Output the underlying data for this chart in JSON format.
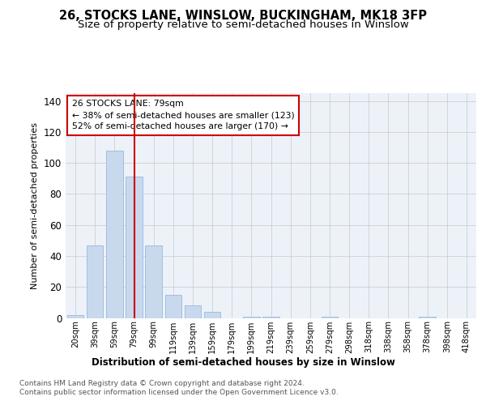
{
  "title": "26, STOCKS LANE, WINSLOW, BUCKINGHAM, MK18 3FP",
  "subtitle": "Size of property relative to semi-detached houses in Winslow",
  "xlabel": "Distribution of semi-detached houses by size in Winslow",
  "ylabel": "Number of semi-detached properties",
  "footnote1": "Contains HM Land Registry data © Crown copyright and database right 2024.",
  "footnote2": "Contains public sector information licensed under the Open Government Licence v3.0.",
  "bar_labels": [
    "20sqm",
    "39sqm",
    "59sqm",
    "79sqm",
    "99sqm",
    "119sqm",
    "139sqm",
    "159sqm",
    "179sqm",
    "199sqm",
    "219sqm",
    "239sqm",
    "259sqm",
    "279sqm",
    "298sqm",
    "318sqm",
    "338sqm",
    "358sqm",
    "378sqm",
    "398sqm",
    "418sqm"
  ],
  "bar_values": [
    2,
    47,
    108,
    91,
    47,
    15,
    8,
    4,
    0,
    1,
    1,
    0,
    0,
    1,
    0,
    0,
    0,
    0,
    1,
    0,
    0
  ],
  "bar_color": "#c8d9ee",
  "bar_edge_color": "#9ab8d8",
  "vline_color": "#cc0000",
  "annotation_title": "26 STOCKS LANE: 79sqm",
  "annotation_line1": "← 38% of semi-detached houses are smaller (123)",
  "annotation_line2": "52% of semi-detached houses are larger (170) →",
  "annotation_box_color": "#ffffff",
  "annotation_box_edge_color": "#cc0000",
  "ylim": [
    0,
    145
  ],
  "yticks": [
    0,
    20,
    40,
    60,
    80,
    100,
    120,
    140
  ],
  "grid_color": "#c8c8c8",
  "bg_color": "#edf2f9",
  "title_fontsize": 10.5,
  "subtitle_fontsize": 9.5
}
